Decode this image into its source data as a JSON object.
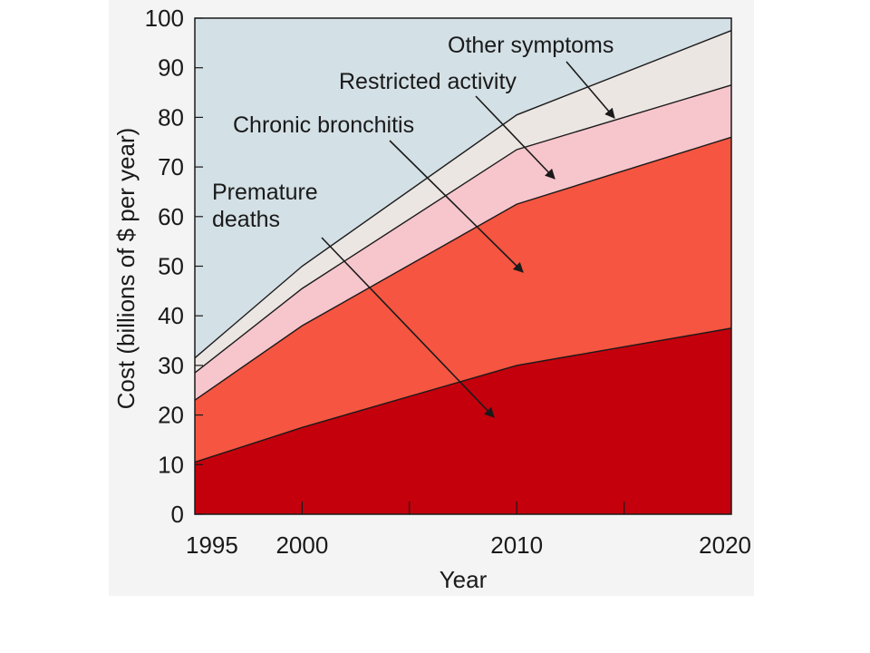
{
  "chart_data": {
    "type": "area",
    "stacked": true,
    "x": [
      1995,
      2000,
      2010,
      2020
    ],
    "x_ticks": [
      1995,
      2000,
      2010,
      2020
    ],
    "x_minor_ticks": [
      2005,
      2015
    ],
    "xlim": [
      1995,
      2020
    ],
    "ylim": [
      0,
      100
    ],
    "y_ticks": [
      0,
      10,
      20,
      30,
      40,
      50,
      60,
      70,
      80,
      90,
      100
    ],
    "xlabel": "Year",
    "ylabel": "Cost (billions of $ per year)",
    "grid": false,
    "series": [
      {
        "name": "Premature deaths",
        "values": [
          10.5,
          17.5,
          30,
          37.5
        ]
      },
      {
        "name": "Chronic bronchitis",
        "values": [
          12.5,
          20.5,
          32.5,
          38.5
        ]
      },
      {
        "name": "Restricted activity",
        "values": [
          5.5,
          7.5,
          11,
          10.5
        ]
      },
      {
        "name": "Other symptoms",
        "values": [
          3,
          4.5,
          7,
          11
        ]
      }
    ],
    "annotations": [
      {
        "lines": [
          "Premature",
          "deaths"
        ],
        "series": "Premature deaths"
      },
      {
        "lines": [
          "Chronic bronchitis"
        ],
        "series": "Chronic bronchitis"
      },
      {
        "lines": [
          "Restricted activity"
        ],
        "series": "Restricted activity"
      },
      {
        "lines": [
          "Other symptoms"
        ],
        "series": "Other symptoms"
      }
    ],
    "colors": {
      "background": "#d3e0e5",
      "Premature deaths": "#c4000c",
      "Chronic bronchitis": "#f55541",
      "Restricted activity": "#f6c6cc",
      "Other symptoms": "#ece6e3",
      "outline": "#1a1a1a"
    }
  }
}
